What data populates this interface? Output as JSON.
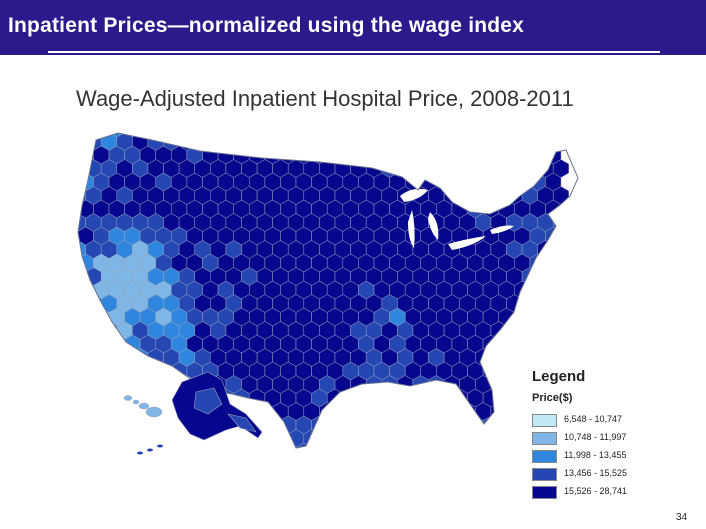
{
  "slide": {
    "title": "Inpatient Prices—normalized using the wage index",
    "page_number": "34"
  },
  "map": {
    "title": "Wage-Adjusted Inpatient Hospital Price, 2008-2011",
    "region": "United States (with Alaska and Hawaii insets)",
    "unit": "Hospital referral regions"
  },
  "legend": {
    "title": "Legend",
    "subtitle": "Price($)",
    "classes": [
      {
        "label": "6,548 - 10,747",
        "color": "#bfe9f5"
      },
      {
        "label": "10,748 - 11,997",
        "color": "#7fb6e6"
      },
      {
        "label": "11,998 - 13,455",
        "color": "#2e86de"
      },
      {
        "label": "13,456 - 15,525",
        "color": "#2447b4"
      },
      {
        "label": "15,526 - 28,741",
        "color": "#06068e"
      }
    ]
  },
  "colors": {
    "title_bar": "#2a1a8c",
    "boundary": "#9aa3b8"
  }
}
